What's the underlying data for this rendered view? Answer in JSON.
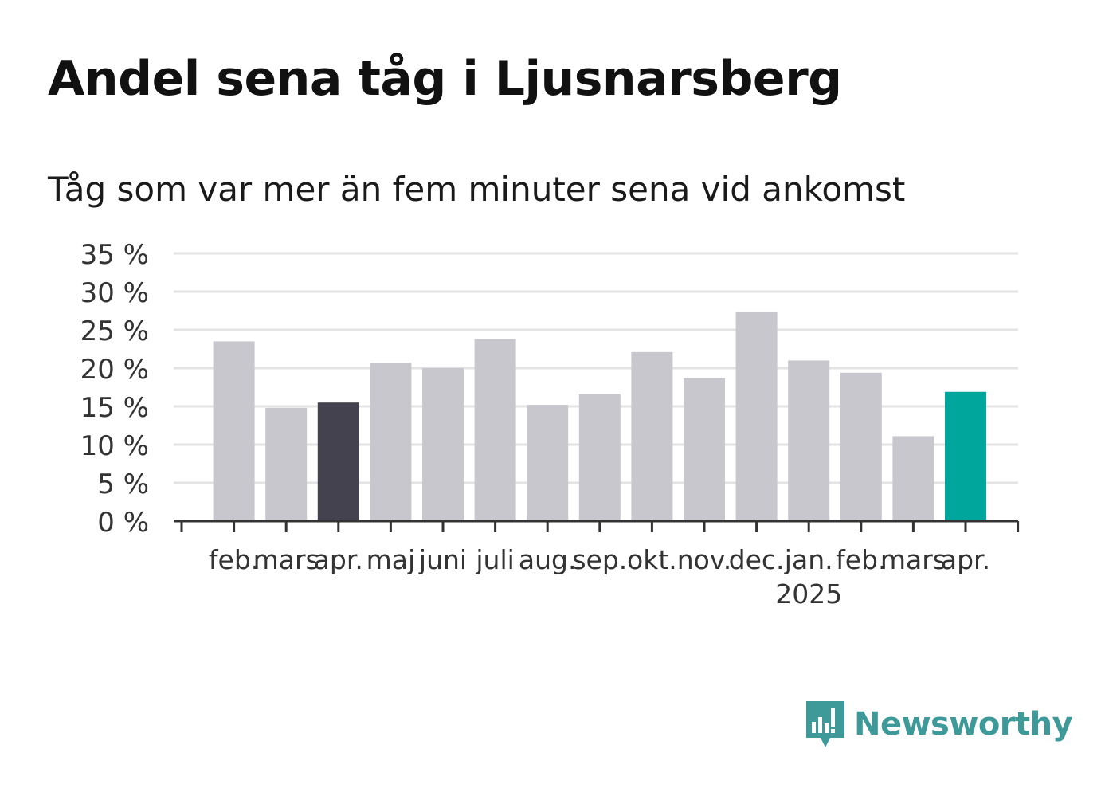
{
  "header": {
    "title": "Andel sena tåg i Ljusnarsberg",
    "subtitle": "Tåg som var mer än fem minuter sena vid ankomst"
  },
  "brand": {
    "name": "Newsworthy",
    "color": "#3d9a98",
    "icon": "bar-chart-speech-bubble-icon"
  },
  "chart_data": {
    "type": "bar",
    "categories": [
      "feb.",
      "mars",
      "apr.",
      "maj",
      "juni",
      "juli",
      "aug.",
      "sep.",
      "okt.",
      "nov.",
      "dec.",
      "jan.",
      "feb.",
      "mars",
      "apr."
    ],
    "year_labels": [
      {
        "category_index": 11,
        "label": "2025"
      }
    ],
    "values": [
      23.5,
      14.8,
      15.5,
      20.7,
      20.0,
      23.8,
      15.2,
      16.6,
      22.1,
      18.7,
      27.3,
      21.0,
      19.4,
      11.1,
      16.9
    ],
    "ylim": [
      0,
      35
    ],
    "yticks": [
      0,
      5,
      10,
      15,
      20,
      25,
      30,
      35
    ],
    "ytick_labels": [
      "0 %",
      "5 %",
      "10 %",
      "15 %",
      "20 %",
      "25 %",
      "30 %",
      "35 %"
    ],
    "xlabel": "",
    "ylabel": "",
    "grid": true,
    "colors": {
      "default": "#c8c7cd",
      "previous_year": "#43424e",
      "current": "#00a59b",
      "grid": "#e3e3e3",
      "axis": "#333333"
    },
    "highlight": {
      "2": "previous_year",
      "14": "current"
    }
  }
}
